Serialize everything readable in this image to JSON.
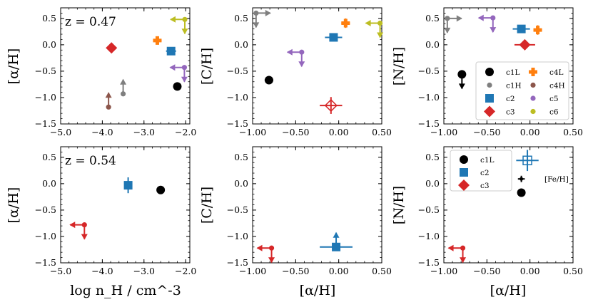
{
  "figure": {
    "title": ""
  },
  "colors": {
    "c1L": "#000000",
    "c1H": "#7f7f7f",
    "c2": "#1f77b4",
    "c3": "#d62728",
    "c4L": "#ff7f0e",
    "c4H": "#8c564b",
    "c5": "#9467bd",
    "c6": "#bcbd22"
  },
  "legend_top": {
    "entries": [
      {
        "key": "c1L",
        "label": "c1L",
        "marker": "circle"
      },
      {
        "key": "c4L",
        "label": "c4L",
        "marker": "plus"
      },
      {
        "key": "c1H",
        "label": "c1H",
        "marker": "smallcircle"
      },
      {
        "key": "c4H",
        "label": "c4H",
        "marker": "smallcircle"
      },
      {
        "key": "c2",
        "label": "c2",
        "marker": "square"
      },
      {
        "key": "c5",
        "label": "c5",
        "marker": "smallcircle"
      },
      {
        "key": "c3",
        "label": "c3",
        "marker": "diamond"
      },
      {
        "key": "c6",
        "label": "c6",
        "marker": "smallcircle"
      }
    ]
  },
  "legend_bottom": {
    "entries": [
      {
        "key": "c1L",
        "label": "c1L",
        "marker": "circle"
      },
      {
        "key": "c2",
        "label": "c2",
        "marker": "square"
      },
      {
        "key": "c3",
        "label": "c3",
        "marker": "diamond"
      }
    ]
  },
  "chart_data": [
    {
      "type": "scatter",
      "panel": "top-left",
      "annotation": "z = 0.47",
      "xlabel": "",
      "ylabel": "[α/H]",
      "xlim": [
        -5.0,
        -1.9
      ],
      "ylim": [
        -1.5,
        0.7
      ],
      "xticks": [
        -5.0,
        -4.0,
        -3.0,
        -2.0
      ],
      "xticklabels": [
        "−5.0",
        "−4.0",
        "−3.0",
        "−2.0"
      ],
      "yticks": [
        -1.5,
        -1.0,
        -0.5,
        0.0,
        0.5
      ],
      "yticklabels": [
        "−1.5",
        "−1.0",
        "−0.5",
        "0.0",
        "0.5"
      ],
      "points": [
        {
          "series": "c1L",
          "x": -2.2,
          "y": -0.79,
          "marker": "circle",
          "xerr": 0.06
        },
        {
          "series": "c1H",
          "x": -3.5,
          "y": -0.93,
          "marker": "smallcircle",
          "limit_y": "lower"
        },
        {
          "series": "c4H",
          "x": -3.85,
          "y": -1.18,
          "marker": "smallcircle",
          "limit_y": "lower"
        },
        {
          "series": "c2",
          "x": -2.35,
          "y": -0.12,
          "marker": "square",
          "xerr": 0.12,
          "yerr": 0.07
        },
        {
          "series": "c3",
          "x": -3.78,
          "y": -0.06,
          "marker": "diamond"
        },
        {
          "series": "c4L",
          "x": -2.68,
          "y": 0.08,
          "marker": "plus",
          "xerr": 0.1,
          "yerr": 0.07
        },
        {
          "series": "c5",
          "x": -2.03,
          "y": -0.43,
          "marker": "smallcircle",
          "limit_x": "upper",
          "limit_y": "upper"
        },
        {
          "series": "c6",
          "x": -2.02,
          "y": 0.48,
          "marker": "smallcircle",
          "limit_x": "upper",
          "limit_y": "upper"
        }
      ]
    },
    {
      "type": "scatter",
      "panel": "top-middle",
      "xlabel": "",
      "ylabel": "[C/H]",
      "xlim": [
        -1.0,
        0.5
      ],
      "ylim": [
        -1.5,
        0.7
      ],
      "xticks": [
        -1.0,
        -0.5,
        0.0,
        0.5
      ],
      "xticklabels": [
        "−1.00",
        "−0.50",
        "0.00",
        "0.50"
      ],
      "yticks": [
        -1.5,
        -1.0,
        -0.5,
        0.0,
        0.5
      ],
      "yticklabels": [
        "−1.5",
        "−1.0",
        "−0.5",
        "0.0",
        "0.5"
      ],
      "points": [
        {
          "series": "c1L",
          "x": -0.81,
          "y": -0.67,
          "marker": "circle",
          "xerr": 0.05
        },
        {
          "series": "c1H",
          "x": -0.96,
          "y": 0.6,
          "marker": "smallcircle",
          "limit_x": "lower",
          "limit_y": "upper"
        },
        {
          "series": "c2",
          "x": -0.06,
          "y": 0.14,
          "marker": "square",
          "xerr": 0.1,
          "yerr": 0.07
        },
        {
          "series": "c3",
          "x": -0.09,
          "y": -1.15,
          "marker": "open-diamond",
          "xerr": 0.13,
          "yerr": 0.16
        },
        {
          "series": "c4L",
          "x": 0.08,
          "y": 0.41,
          "marker": "plus",
          "xerr": 0.05,
          "yerr": 0.09
        },
        {
          "series": "c5",
          "x": -0.43,
          "y": -0.14,
          "marker": "smallcircle",
          "limit_x": "upper",
          "limit_y": "upper"
        },
        {
          "series": "c6",
          "x": 0.48,
          "y": 0.41,
          "marker": "smallcircle",
          "limit_x": "upper",
          "limit_y": "upper"
        }
      ]
    },
    {
      "type": "scatter",
      "panel": "top-right",
      "xlabel": "",
      "ylabel": "[N/H]",
      "xlim": [
        -1.0,
        0.5
      ],
      "ylim": [
        -1.5,
        0.7
      ],
      "xticks": [
        -1.0,
        -0.5,
        0.0,
        0.5
      ],
      "xticklabels": [
        "−1.00",
        "−0.50",
        "0.00",
        "0.50"
      ],
      "yticks": [
        -1.5,
        -1.0,
        -0.5,
        0.0,
        0.5
      ],
      "yticklabels": [
        "−1.5",
        "−1.0",
        "−0.5",
        "0.0",
        "0.5"
      ],
      "points": [
        {
          "series": "c1L",
          "x": -0.79,
          "y": -0.56,
          "marker": "circle",
          "xerr": 0.04,
          "limit_y": "upper"
        },
        {
          "series": "c1H",
          "x": -0.96,
          "y": 0.5,
          "marker": "smallcircle",
          "limit_x": "lower",
          "limit_y": "upper"
        },
        {
          "series": "c2",
          "x": -0.1,
          "y": 0.3,
          "marker": "square",
          "xerr": 0.1,
          "yerr": 0.07
        },
        {
          "series": "c3",
          "x": -0.06,
          "y": 0.0,
          "marker": "diamond",
          "xerr": 0.12
        },
        {
          "series": "c4L",
          "x": 0.09,
          "y": 0.28,
          "marker": "plus",
          "xerr": 0.05,
          "yerr": 0.09
        },
        {
          "series": "c5",
          "x": -0.43,
          "y": 0.51,
          "marker": "smallcircle",
          "limit_x": "upper",
          "limit_y": "upper"
        }
      ],
      "legend": "bottom-right"
    },
    {
      "type": "scatter",
      "panel": "bottom-left",
      "annotation": "z = 0.54",
      "xlabel": "log n_H / cm^-3",
      "ylabel": "[α/H]",
      "xlim": [
        -5.0,
        -1.9
      ],
      "ylim": [
        -1.5,
        0.7
      ],
      "xticks": [
        -5.0,
        -4.0,
        -3.0,
        -2.0
      ],
      "xticklabels": [
        "−5.0",
        "−4.0",
        "−3.0",
        "−2.0"
      ],
      "yticks": [
        -1.5,
        -1.0,
        -0.5,
        0.0,
        0.5
      ],
      "yticklabels": [
        "−1.5",
        "−1.0",
        "−0.5",
        "0.0",
        "0.5"
      ],
      "points": [
        {
          "series": "c1L",
          "x": -2.6,
          "y": -0.12,
          "marker": "circle"
        },
        {
          "series": "c2",
          "x": -3.38,
          "y": -0.03,
          "marker": "square",
          "xerr": 0.06,
          "yerr": 0.15
        },
        {
          "series": "c3",
          "x": -4.43,
          "y": -0.78,
          "marker": "smallcircle",
          "limit_x": "upper",
          "limit_y": "upper"
        }
      ]
    },
    {
      "type": "scatter",
      "panel": "bottom-middle",
      "xlabel": "[α/H]",
      "ylabel": "[C/H]",
      "xlim": [
        -1.0,
        0.5
      ],
      "ylim": [
        -1.5,
        0.7
      ],
      "xticks": [
        -1.0,
        -0.5,
        0.0,
        0.5
      ],
      "xticklabels": [
        "−1.00",
        "−0.50",
        "0.00",
        "0.50"
      ],
      "yticks": [
        -1.5,
        -1.0,
        -0.5,
        0.0,
        0.5
      ],
      "yticklabels": [
        "−1.5",
        "−1.0",
        "−0.5",
        "0.0",
        "0.5"
      ],
      "points": [
        {
          "series": "c2",
          "x": -0.03,
          "y": -1.2,
          "marker": "square",
          "xerr": 0.19,
          "limit_y": "lower"
        },
        {
          "series": "c3",
          "x": -0.78,
          "y": -1.22,
          "marker": "smallcircle",
          "limit_x": "upper",
          "limit_y": "upper"
        }
      ]
    },
    {
      "type": "scatter",
      "panel": "bottom-right",
      "xlabel": "[α/H]",
      "ylabel": "[N/H]",
      "xlim": [
        -1.0,
        0.5
      ],
      "ylim": [
        -1.5,
        0.7
      ],
      "xticks": [
        -1.0,
        -0.5,
        0.0,
        0.5
      ],
      "xticklabels": [
        "−1.00",
        "−0.50",
        "0.00",
        "0.50"
      ],
      "yticks": [
        -1.5,
        -1.0,
        -0.5,
        0.0,
        0.5
      ],
      "yticklabels": [
        "−1.5",
        "−1.0",
        "−0.5",
        "0.0",
        "0.5"
      ],
      "points": [
        {
          "series": "c1L",
          "x": -0.1,
          "y": -0.17,
          "marker": "circle",
          "yerr": 0.06
        },
        {
          "series": "c1L-fe",
          "x": -0.1,
          "y": 0.09,
          "marker": "smalldot",
          "xerr": 0.04,
          "yerr": 0.06
        },
        {
          "series": "c2",
          "x": -0.03,
          "y": 0.44,
          "marker": "open-square",
          "xerr": 0.13,
          "yerr": 0.2
        },
        {
          "series": "c3",
          "x": -0.78,
          "y": -1.22,
          "marker": "smallcircle",
          "limit_x": "upper",
          "limit_y": "upper"
        }
      ],
      "side_label": "[Fe/H]",
      "legend": "top-left"
    }
  ]
}
